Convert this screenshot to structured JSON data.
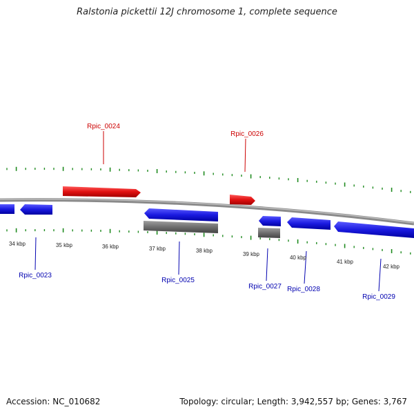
{
  "title": "Ralstonia pickettii 12J chromosome 1, complete sequence",
  "footer": {
    "accession": "Accession: NC_010682",
    "summary": "Topology: circular; Length: 3,942,557 bp; Genes: 3,767"
  },
  "colors": {
    "plus_strand": "#e01010",
    "minus_strand": "#1a1ae0",
    "rna_or_other": "#6e6e6e",
    "backbone": "#8a8a8a",
    "ticks": "#1e8a1e",
    "plus_label": "#cc0000",
    "minus_label": "#0000b0"
  },
  "scale": {
    "unit": "kbp",
    "labels": [
      "34 kbp",
      "35 kbp",
      "36 kbp",
      "37 kbp",
      "38 kbp",
      "39 kbp",
      "40 kbp",
      "41 kbp",
      "42 kbp"
    ]
  },
  "gene_labels": {
    "rpic_0023": "Rpic_0023",
    "rpic_0024": "Rpic_0024",
    "rpic_0025": "Rpic_0025",
    "rpic_0026": "Rpic_0026",
    "rpic_0027": "Rpic_0027",
    "rpic_0028": "Rpic_0028",
    "rpic_0029": "Rpic_0029"
  }
}
